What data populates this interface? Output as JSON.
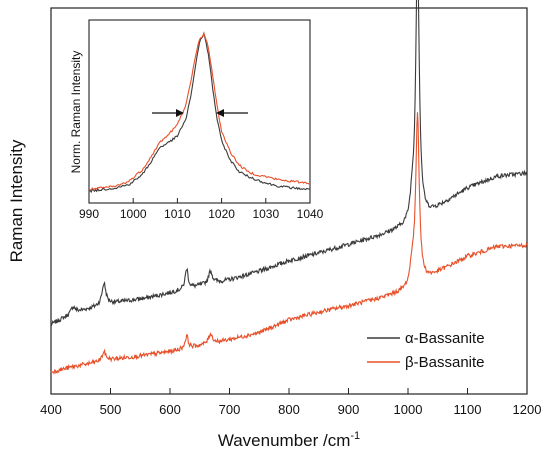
{
  "chart_data": [
    {
      "type": "line",
      "xlabel": "Wavenumber /cm",
      "xlabel_superscript": "-1",
      "ylabel": "Raman Intensity",
      "xlim": [
        400,
        1200
      ],
      "ylim": [
        0,
        1
      ],
      "y_ticks_shown": false,
      "x_ticks": [
        400,
        500,
        600,
        700,
        800,
        900,
        1000,
        1100,
        1200
      ],
      "legend_position": "bottom-right",
      "series": [
        {
          "name": "α-Bassanite",
          "color": "#3a3a3a",
          "baseline": [
            [
              400,
              0.135
            ],
            [
              440,
              0.17
            ],
            [
              500,
              0.195
            ],
            [
              560,
              0.21
            ],
            [
              600,
              0.225
            ],
            [
              650,
              0.245
            ],
            [
              700,
              0.262
            ],
            [
              750,
              0.286
            ],
            [
              800,
              0.316
            ],
            [
              850,
              0.338
            ],
            [
              900,
              0.362
            ],
            [
              950,
              0.386
            ],
            [
              1000,
              0.413
            ],
            [
              1030,
              0.443
            ],
            [
              1060,
              0.478
            ],
            [
              1100,
              0.522
            ],
            [
              1150,
              0.556
            ],
            [
              1200,
              0.565
            ]
          ],
          "peaks": [
            [
              437,
              0.018,
              4
            ],
            [
              489,
              0.062,
              4
            ],
            [
              628,
              0.058,
              3
            ],
            [
              668,
              0.036,
              4
            ],
            [
              1007,
              0.06,
              4
            ],
            [
              1016,
              0.76,
              3.5
            ]
          ]
        },
        {
          "name": "β-Bassanite",
          "color": "#e8502a",
          "baseline": [
            [
              400,
              0.0
            ],
            [
              440,
              0.016
            ],
            [
              500,
              0.035
            ],
            [
              560,
              0.048
            ],
            [
              600,
              0.058
            ],
            [
              650,
              0.075
            ],
            [
              700,
              0.092
            ],
            [
              750,
              0.112
            ],
            [
              800,
              0.148
            ],
            [
              850,
              0.17
            ],
            [
              900,
              0.188
            ],
            [
              950,
              0.208
            ],
            [
              1000,
              0.232
            ],
            [
              1030,
              0.262
            ],
            [
              1060,
              0.292
            ],
            [
              1100,
              0.328
            ],
            [
              1150,
              0.356
            ],
            [
              1200,
              0.36
            ]
          ],
          "peaks": [
            [
              489,
              0.025,
              4
            ],
            [
              628,
              0.036,
              3
            ],
            [
              668,
              0.028,
              4
            ],
            [
              1007,
              0.06,
              4
            ],
            [
              1016,
              0.48,
              3.5
            ]
          ]
        }
      ]
    },
    {
      "type": "line",
      "inset": true,
      "ylabel": "Norm. Raman Intensity",
      "xlim": [
        990,
        1040
      ],
      "ylim": [
        0,
        1
      ],
      "x_ticks": [
        990,
        1000,
        1010,
        1020,
        1030,
        1040
      ],
      "y_ticks_shown": false,
      "annotation": "arrows pointing toward the main peak from both sides",
      "series": [
        {
          "name": "α-Bassanite",
          "color": "#3a3a3a",
          "points": [
            [
              990,
              0.03
            ],
            [
              993,
              0.04
            ],
            [
              996,
              0.05
            ],
            [
              999,
              0.07
            ],
            [
              1002,
              0.13
            ],
            [
              1004,
              0.21
            ],
            [
              1006,
              0.3
            ],
            [
              1008,
              0.33
            ],
            [
              1010,
              0.37
            ],
            [
              1012,
              0.48
            ],
            [
              1013,
              0.61
            ],
            [
              1014,
              0.79
            ],
            [
              1015,
              0.95
            ],
            [
              1016,
              1.0
            ],
            [
              1017,
              0.88
            ],
            [
              1018,
              0.66
            ],
            [
              1019,
              0.47
            ],
            [
              1020,
              0.34
            ],
            [
              1022,
              0.22
            ],
            [
              1024,
              0.15
            ],
            [
              1026,
              0.12
            ],
            [
              1028,
              0.1
            ],
            [
              1030,
              0.08
            ],
            [
              1033,
              0.06
            ],
            [
              1036,
              0.05
            ],
            [
              1040,
              0.04
            ]
          ]
        },
        {
          "name": "β-Bassanite",
          "color": "#e8502a",
          "points": [
            [
              990,
              0.04
            ],
            [
              993,
              0.05
            ],
            [
              996,
              0.06
            ],
            [
              999,
              0.09
            ],
            [
              1002,
              0.16
            ],
            [
              1004,
              0.24
            ],
            [
              1006,
              0.33
            ],
            [
              1008,
              0.38
            ],
            [
              1010,
              0.44
            ],
            [
              1012,
              0.57
            ],
            [
              1013,
              0.7
            ],
            [
              1014,
              0.85
            ],
            [
              1015,
              0.97
            ],
            [
              1016,
              1.0
            ],
            [
              1017,
              0.92
            ],
            [
              1018,
              0.74
            ],
            [
              1019,
              0.55
            ],
            [
              1020,
              0.4
            ],
            [
              1022,
              0.27
            ],
            [
              1024,
              0.19
            ],
            [
              1026,
              0.15
            ],
            [
              1028,
              0.13
            ],
            [
              1030,
              0.12
            ],
            [
              1033,
              0.1
            ],
            [
              1036,
              0.09
            ],
            [
              1040,
              0.08
            ]
          ]
        }
      ]
    }
  ]
}
